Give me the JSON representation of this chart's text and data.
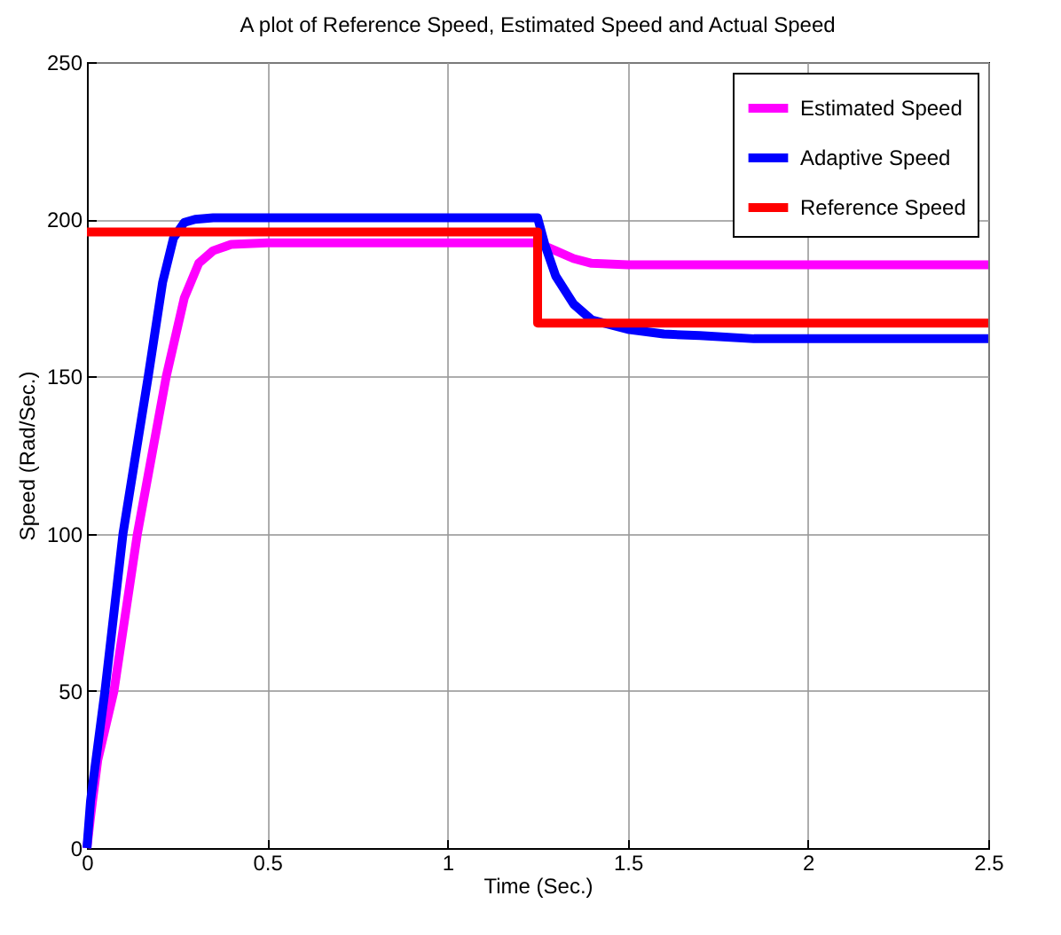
{
  "chart_data": {
    "type": "line",
    "title": "A plot of Reference Speed, Estimated Speed and Actual Speed",
    "xlabel": "Time (Sec.)",
    "ylabel": "Speed (Rad/Sec.)",
    "xlim": [
      0,
      2.5
    ],
    "ylim": [
      0,
      250
    ],
    "xticks": [
      0,
      0.5,
      1,
      1.5,
      2,
      2.5
    ],
    "yticks": [
      0,
      50,
      100,
      150,
      200,
      250
    ],
    "grid": true,
    "legend": "top right",
    "marker": "none",
    "line_style": "solid",
    "series": [
      {
        "name": "Estimated Speed",
        "color": "#ff00ff",
        "x": [
          0,
          0.01,
          0.03,
          0.075,
          0.14,
          0.22,
          0.27,
          0.31,
          0.35,
          0.4,
          0.5,
          1.0,
          1.25,
          1.3,
          1.35,
          1.4,
          1.5,
          2.0,
          2.5
        ],
        "values": [
          0,
          10,
          28,
          50,
          100,
          150,
          175,
          186,
          190,
          192,
          192.5,
          192.5,
          192.5,
          190,
          187.5,
          186,
          185.5,
          185.5,
          185.5
        ]
      },
      {
        "name": "Adaptive Speed",
        "color": "#0000ff",
        "x": [
          0,
          0.01,
          0.05,
          0.1,
          0.17,
          0.21,
          0.24,
          0.27,
          0.3,
          0.35,
          0.5,
          1.0,
          1.25,
          1.27,
          1.3,
          1.35,
          1.4,
          1.5,
          1.6,
          1.7,
          1.85,
          2.0,
          2.5
        ],
        "values": [
          0,
          15,
          50,
          100,
          150,
          180,
          194,
          199,
          200,
          200.5,
          200.5,
          200.5,
          200.5,
          192,
          182,
          173,
          168,
          165,
          163.5,
          163,
          162,
          162,
          162
        ]
      },
      {
        "name": "Reference Speed",
        "color": "#ff0000",
        "x": [
          0,
          1.25,
          1.25,
          2.5
        ],
        "values": [
          196,
          196,
          167,
          167
        ]
      }
    ]
  }
}
